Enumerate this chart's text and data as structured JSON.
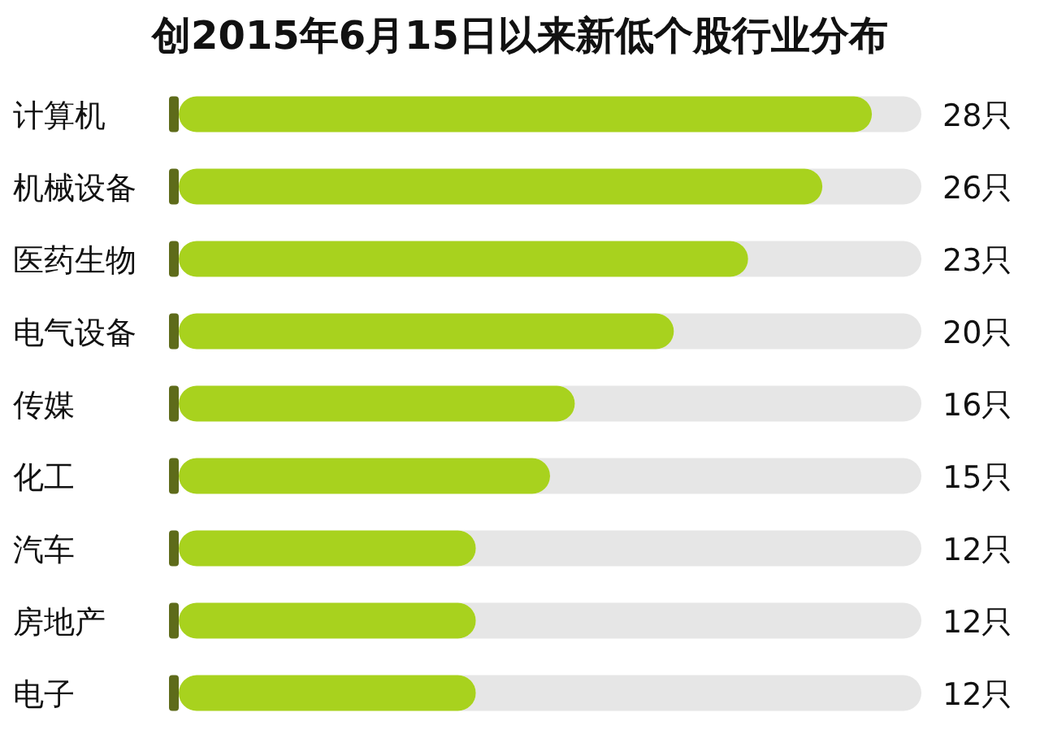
{
  "chart_data": {
    "type": "bar",
    "orientation": "horizontal",
    "title": "创2015年6月15日以来新低个股行业分布",
    "categories": [
      "计算机",
      "机械设备",
      "医药生物",
      "电气设备",
      "传媒",
      "化工",
      "汽车",
      "房地产",
      "电子"
    ],
    "values": [
      28,
      26,
      23,
      20,
      16,
      15,
      12,
      12,
      12
    ],
    "value_labels": [
      "28只",
      "26只",
      "23只",
      "20只",
      "16只",
      "15只",
      "12只",
      "12只",
      "12只"
    ],
    "color": "#a8d21e",
    "xlim": [
      0,
      30
    ]
  }
}
